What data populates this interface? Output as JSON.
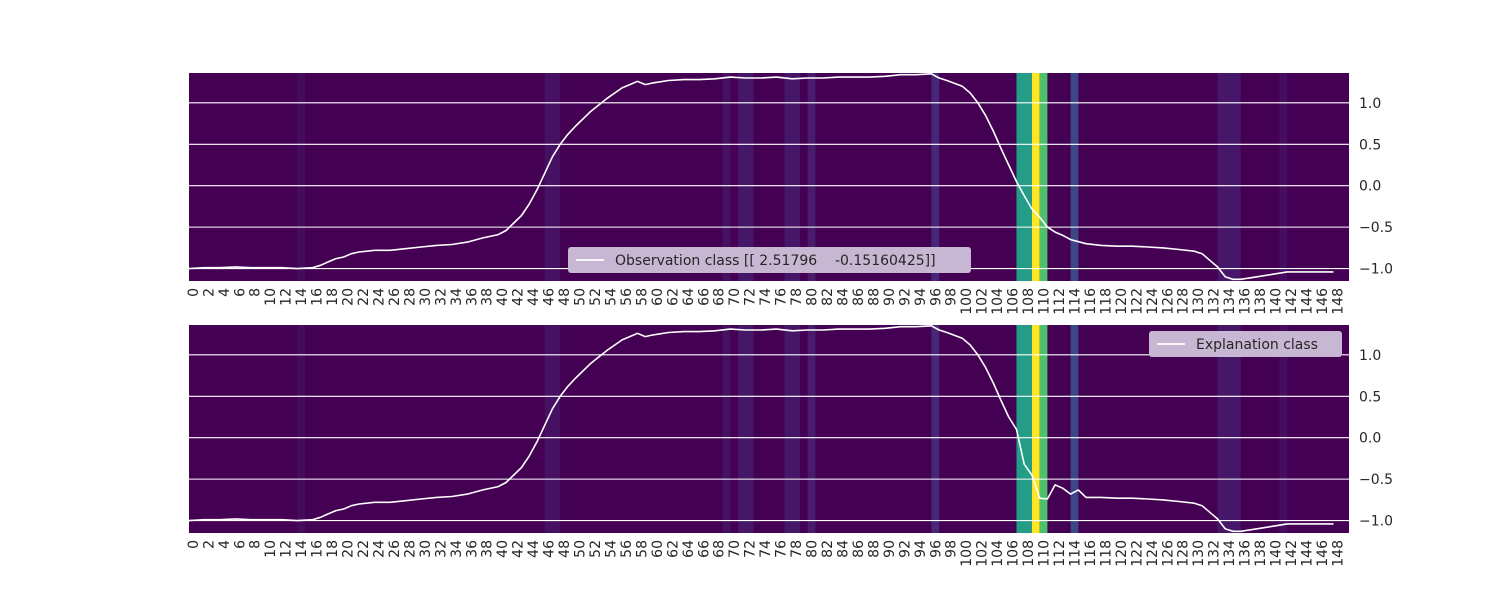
{
  "chart_data": [
    {
      "type": "line",
      "panel": "top",
      "x_range": [
        0,
        149
      ],
      "x_tick_labels": [
        "0",
        "2",
        "4",
        "6",
        "8",
        "10",
        "12",
        "14",
        "16",
        "18",
        "20",
        "22",
        "24",
        "26",
        "28",
        "30",
        "32",
        "34",
        "36",
        "38",
        "40",
        "42",
        "44",
        "46",
        "48",
        "50",
        "52",
        "54",
        "56",
        "58",
        "60",
        "62",
        "64",
        "66",
        "68",
        "70",
        "72",
        "74",
        "76",
        "78",
        "80",
        "82",
        "84",
        "86",
        "88",
        "90",
        "92",
        "94",
        "96",
        "98",
        "100",
        "102",
        "104",
        "106",
        "108",
        "110",
        "112",
        "114",
        "116",
        "118",
        "120",
        "122",
        "124",
        "126",
        "128",
        "130",
        "132",
        "134",
        "136",
        "138",
        "140",
        "142",
        "144",
        "146",
        "148"
      ],
      "y_ticks": [
        1.0,
        0.5,
        0.0,
        -0.5,
        -1.0
      ],
      "y_tick_labels": [
        "1.0",
        "0.5",
        "0.0",
        "−0.5",
        "−1.0"
      ],
      "ylim": [
        -1.15,
        1.36
      ],
      "grid": true,
      "legend_position": "lower-center",
      "series": [
        {
          "name": "Observation class [[ 2.51796    -0.15160425]]",
          "color": "#ffffff",
          "points": [
            [
              0,
              -1.0
            ],
            [
              2,
              -0.99
            ],
            [
              4,
              -0.99
            ],
            [
              6,
              -0.98
            ],
            [
              8,
              -0.99
            ],
            [
              10,
              -0.99
            ],
            [
              12,
              -0.99
            ],
            [
              14,
              -1.0
            ],
            [
              16,
              -0.99
            ],
            [
              17,
              -0.96
            ],
            [
              18,
              -0.92
            ],
            [
              19,
              -0.88
            ],
            [
              20,
              -0.86
            ],
            [
              21,
              -0.82
            ],
            [
              22,
              -0.8
            ],
            [
              24,
              -0.78
            ],
            [
              26,
              -0.78
            ],
            [
              28,
              -0.76
            ],
            [
              30,
              -0.74
            ],
            [
              32,
              -0.72
            ],
            [
              34,
              -0.71
            ],
            [
              36,
              -0.68
            ],
            [
              38,
              -0.63
            ],
            [
              40,
              -0.59
            ],
            [
              41,
              -0.54
            ],
            [
              42,
              -0.45
            ],
            [
              43,
              -0.36
            ],
            [
              44,
              -0.22
            ],
            [
              45,
              -0.05
            ],
            [
              46,
              0.15
            ],
            [
              47,
              0.35
            ],
            [
              48,
              0.5
            ],
            [
              49,
              0.62
            ],
            [
              50,
              0.72
            ],
            [
              52,
              0.9
            ],
            [
              54,
              1.05
            ],
            [
              56,
              1.18
            ],
            [
              58,
              1.26
            ],
            [
              59,
              1.22
            ],
            [
              60,
              1.24
            ],
            [
              62,
              1.27
            ],
            [
              64,
              1.28
            ],
            [
              66,
              1.28
            ],
            [
              68,
              1.29
            ],
            [
              70,
              1.31
            ],
            [
              72,
              1.3
            ],
            [
              74,
              1.3
            ],
            [
              76,
              1.31
            ],
            [
              78,
              1.29
            ],
            [
              80,
              1.3
            ],
            [
              82,
              1.3
            ],
            [
              84,
              1.31
            ],
            [
              86,
              1.31
            ],
            [
              88,
              1.31
            ],
            [
              90,
              1.32
            ],
            [
              92,
              1.34
            ],
            [
              94,
              1.34
            ],
            [
              96,
              1.35
            ],
            [
              97,
              1.3
            ],
            [
              98,
              1.27
            ],
            [
              100,
              1.2
            ],
            [
              101,
              1.12
            ],
            [
              102,
              1.0
            ],
            [
              103,
              0.85
            ],
            [
              104,
              0.66
            ],
            [
              105,
              0.45
            ],
            [
              106,
              0.25
            ],
            [
              107,
              0.05
            ],
            [
              108,
              -0.12
            ],
            [
              109,
              -0.28
            ],
            [
              110,
              -0.38
            ],
            [
              111,
              -0.5
            ],
            [
              112,
              -0.56
            ],
            [
              113,
              -0.6
            ],
            [
              114,
              -0.65
            ],
            [
              116,
              -0.7
            ],
            [
              118,
              -0.72
            ],
            [
              120,
              -0.73
            ],
            [
              122,
              -0.73
            ],
            [
              124,
              -0.74
            ],
            [
              126,
              -0.75
            ],
            [
              128,
              -0.77
            ],
            [
              130,
              -0.79
            ],
            [
              131,
              -0.82
            ],
            [
              132,
              -0.9
            ],
            [
              133,
              -0.98
            ],
            [
              134,
              -1.1
            ],
            [
              135,
              -1.13
            ],
            [
              136,
              -1.13
            ],
            [
              138,
              -1.1
            ],
            [
              140,
              -1.07
            ],
            [
              142,
              -1.04
            ],
            [
              144,
              -1.04
            ],
            [
              146,
              -1.04
            ],
            [
              148,
              -1.04
            ]
          ]
        }
      ],
      "heatmap_bands": [
        {
          "start": 14,
          "end": 15,
          "value": 0.04
        },
        {
          "start": 46,
          "end": 48,
          "value": 0.06
        },
        {
          "start": 69,
          "end": 70,
          "value": 0.06
        },
        {
          "start": 71,
          "end": 73,
          "value": 0.08
        },
        {
          "start": 77,
          "end": 79,
          "value": 0.08
        },
        {
          "start": 80,
          "end": 81,
          "value": 0.1
        },
        {
          "start": 96,
          "end": 97,
          "value": 0.14
        },
        {
          "start": 107,
          "end": 109,
          "value": 0.55
        },
        {
          "start": 109,
          "end": 110,
          "value": 1.0
        },
        {
          "start": 110,
          "end": 111,
          "value": 0.72
        },
        {
          "start": 114,
          "end": 115,
          "value": 0.22
        },
        {
          "start": 133,
          "end": 136,
          "value": 0.08
        },
        {
          "start": 141,
          "end": 142,
          "value": 0.05
        }
      ]
    },
    {
      "type": "line",
      "panel": "bottom",
      "x_range": [
        0,
        149
      ],
      "x_tick_labels": [
        "0",
        "2",
        "4",
        "6",
        "8",
        "10",
        "12",
        "14",
        "16",
        "18",
        "20",
        "22",
        "24",
        "26",
        "28",
        "30",
        "32",
        "34",
        "36",
        "38",
        "40",
        "42",
        "44",
        "46",
        "48",
        "50",
        "52",
        "54",
        "56",
        "58",
        "60",
        "62",
        "64",
        "66",
        "68",
        "70",
        "72",
        "74",
        "76",
        "78",
        "80",
        "82",
        "84",
        "86",
        "88",
        "90",
        "92",
        "94",
        "96",
        "98",
        "100",
        "102",
        "104",
        "106",
        "108",
        "110",
        "112",
        "114",
        "116",
        "118",
        "120",
        "122",
        "124",
        "126",
        "128",
        "130",
        "132",
        "134",
        "136",
        "138",
        "140",
        "142",
        "144",
        "146",
        "148"
      ],
      "y_ticks": [
        1.0,
        0.5,
        0.0,
        -0.5,
        -1.0
      ],
      "y_tick_labels": [
        "1.0",
        "0.5",
        "0.0",
        "−0.5",
        "−1.0"
      ],
      "ylim": [
        -1.15,
        1.36
      ],
      "grid": true,
      "legend_position": "upper-right",
      "series": [
        {
          "name": "Explanation class",
          "color": "#ffffff",
          "points": [
            [
              0,
              -1.0
            ],
            [
              2,
              -0.99
            ],
            [
              4,
              -0.99
            ],
            [
              6,
              -0.98
            ],
            [
              8,
              -0.99
            ],
            [
              10,
              -0.99
            ],
            [
              12,
              -0.99
            ],
            [
              14,
              -1.0
            ],
            [
              16,
              -0.99
            ],
            [
              17,
              -0.96
            ],
            [
              18,
              -0.92
            ],
            [
              19,
              -0.88
            ],
            [
              20,
              -0.86
            ],
            [
              21,
              -0.82
            ],
            [
              22,
              -0.8
            ],
            [
              24,
              -0.78
            ],
            [
              26,
              -0.78
            ],
            [
              28,
              -0.76
            ],
            [
              30,
              -0.74
            ],
            [
              32,
              -0.72
            ],
            [
              34,
              -0.71
            ],
            [
              36,
              -0.68
            ],
            [
              38,
              -0.63
            ],
            [
              40,
              -0.59
            ],
            [
              41,
              -0.54
            ],
            [
              42,
              -0.45
            ],
            [
              43,
              -0.36
            ],
            [
              44,
              -0.22
            ],
            [
              45,
              -0.05
            ],
            [
              46,
              0.15
            ],
            [
              47,
              0.35
            ],
            [
              48,
              0.5
            ],
            [
              49,
              0.62
            ],
            [
              50,
              0.72
            ],
            [
              52,
              0.9
            ],
            [
              54,
              1.05
            ],
            [
              56,
              1.18
            ],
            [
              58,
              1.26
            ],
            [
              59,
              1.22
            ],
            [
              60,
              1.24
            ],
            [
              62,
              1.27
            ],
            [
              64,
              1.28
            ],
            [
              66,
              1.28
            ],
            [
              68,
              1.29
            ],
            [
              70,
              1.31
            ],
            [
              72,
              1.3
            ],
            [
              74,
              1.3
            ],
            [
              76,
              1.31
            ],
            [
              78,
              1.29
            ],
            [
              80,
              1.3
            ],
            [
              82,
              1.3
            ],
            [
              84,
              1.31
            ],
            [
              86,
              1.31
            ],
            [
              88,
              1.31
            ],
            [
              90,
              1.32
            ],
            [
              92,
              1.34
            ],
            [
              94,
              1.34
            ],
            [
              96,
              1.35
            ],
            [
              97,
              1.3
            ],
            [
              98,
              1.27
            ],
            [
              100,
              1.2
            ],
            [
              101,
              1.12
            ],
            [
              102,
              1.0
            ],
            [
              103,
              0.85
            ],
            [
              104,
              0.66
            ],
            [
              105,
              0.45
            ],
            [
              106,
              0.25
            ],
            [
              107,
              0.1
            ],
            [
              108,
              -0.32
            ],
            [
              109,
              -0.45
            ],
            [
              110,
              -0.73
            ],
            [
              111,
              -0.74
            ],
            [
              112,
              -0.57
            ],
            [
              113,
              -0.61
            ],
            [
              114,
              -0.68
            ],
            [
              115,
              -0.63
            ],
            [
              116,
              -0.72
            ],
            [
              118,
              -0.72
            ],
            [
              120,
              -0.73
            ],
            [
              122,
              -0.73
            ],
            [
              124,
              -0.74
            ],
            [
              126,
              -0.75
            ],
            [
              128,
              -0.77
            ],
            [
              130,
              -0.79
            ],
            [
              131,
              -0.82
            ],
            [
              132,
              -0.9
            ],
            [
              133,
              -0.98
            ],
            [
              134,
              -1.1
            ],
            [
              135,
              -1.13
            ],
            [
              136,
              -1.13
            ],
            [
              138,
              -1.1
            ],
            [
              140,
              -1.07
            ],
            [
              142,
              -1.04
            ],
            [
              144,
              -1.04
            ],
            [
              146,
              -1.04
            ],
            [
              148,
              -1.04
            ]
          ]
        }
      ],
      "heatmap_bands": [
        {
          "start": 14,
          "end": 15,
          "value": 0.04
        },
        {
          "start": 46,
          "end": 48,
          "value": 0.06
        },
        {
          "start": 69,
          "end": 70,
          "value": 0.06
        },
        {
          "start": 71,
          "end": 73,
          "value": 0.08
        },
        {
          "start": 77,
          "end": 79,
          "value": 0.08
        },
        {
          "start": 80,
          "end": 81,
          "value": 0.1
        },
        {
          "start": 96,
          "end": 97,
          "value": 0.14
        },
        {
          "start": 107,
          "end": 109,
          "value": 0.55
        },
        {
          "start": 109,
          "end": 110,
          "value": 1.0
        },
        {
          "start": 110,
          "end": 111,
          "value": 0.72
        },
        {
          "start": 114,
          "end": 115,
          "value": 0.22
        },
        {
          "start": 133,
          "end": 136,
          "value": 0.08
        },
        {
          "start": 141,
          "end": 142,
          "value": 0.05
        }
      ]
    }
  ],
  "colormap": "viridis",
  "colors": {
    "background": "#440154",
    "line": "#ffffff",
    "grid": "#ffffff",
    "legend_box": "#c7b7d2",
    "tick_text": "#262626"
  }
}
